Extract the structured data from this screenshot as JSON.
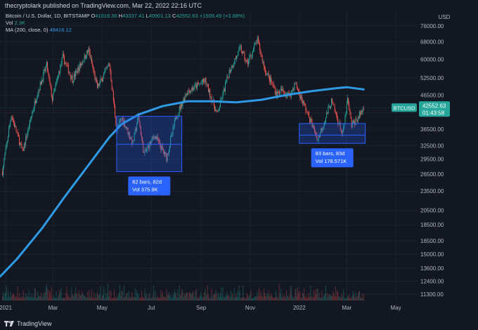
{
  "header": {
    "publish_line": "thecryptolark published on TradingView.com, Mar 22, 2022 22:16 UTC"
  },
  "legend": {
    "symbol_line": "Bitcoin / U.S. Dollar, 1D, BITSTAMP",
    "o_label": "O",
    "o_value": "41018.36",
    "h_label": "H",
    "h_value": "43337.41",
    "l_label": "L",
    "l_value": "40901.13",
    "c_label": "C",
    "c_value": "42552.63",
    "change": "+1509.49 (+3.68%)",
    "vol_label": "Vol",
    "vol_value": "2.3K",
    "ma_label": "MA (200, close, 0)",
    "ma_value": "48416.12"
  },
  "footer": {
    "brand": "TradingView"
  },
  "colors": {
    "background": "#131722",
    "up": "#26a69a",
    "down": "#ef5350",
    "ma": "#2e9ae5",
    "box": "#2962ff",
    "grid": "#1e222d",
    "text": "#b2b5be"
  },
  "chart_data": {
    "type": "candlestick",
    "title": "",
    "y_scale": "log",
    "ylim": [
      10800,
      84000
    ],
    "y_axis_unit": "USD",
    "y_ticks": [
      11300,
      12400,
      13600,
      15000,
      16500,
      18500,
      20500,
      23500,
      26500,
      29500,
      32500,
      36500,
      41000,
      46500,
      52500,
      60000,
      68000,
      76000
    ],
    "x_range": [
      "2020-12-25",
      "2022-05-28"
    ],
    "x_ticks": [
      {
        "date": "2021-01-01",
        "label": "2021"
      },
      {
        "date": "2021-03-01",
        "label": "Mar"
      },
      {
        "date": "2021-05-01",
        "label": "May"
      },
      {
        "date": "2021-07-01",
        "label": "Jul"
      },
      {
        "date": "2021-09-01",
        "label": "Sep"
      },
      {
        "date": "2021-11-01",
        "label": "Nov"
      },
      {
        "date": "2022-01-01",
        "label": "2022"
      },
      {
        "date": "2022-03-01",
        "label": "Mar"
      },
      {
        "date": "2022-05-01",
        "label": "May"
      }
    ],
    "price_path": [
      [
        "2020-12-28",
        27000
      ],
      [
        "2021-01-08",
        40500
      ],
      [
        "2021-01-22",
        31000
      ],
      [
        "2021-02-08",
        46000
      ],
      [
        "2021-02-21",
        57500
      ],
      [
        "2021-02-28",
        45000
      ],
      [
        "2021-03-13",
        61000
      ],
      [
        "2021-03-25",
        52000
      ],
      [
        "2021-04-14",
        64000
      ],
      [
        "2021-04-25",
        49000
      ],
      [
        "2021-05-10",
        58000
      ],
      [
        "2021-05-19",
        36500
      ],
      [
        "2021-05-26",
        39500
      ],
      [
        "2021-06-08",
        33000
      ],
      [
        "2021-06-15",
        40000
      ],
      [
        "2021-06-22",
        30500
      ],
      [
        "2021-07-05",
        35000
      ],
      [
        "2021-07-20",
        29800
      ],
      [
        "2021-08-01",
        40000
      ],
      [
        "2021-08-14",
        47500
      ],
      [
        "2021-09-06",
        51500
      ],
      [
        "2021-09-21",
        40500
      ],
      [
        "2021-10-06",
        55000
      ],
      [
        "2021-10-20",
        65000
      ],
      [
        "2021-10-28",
        58000
      ],
      [
        "2021-11-10",
        68800
      ],
      [
        "2021-11-19",
        56000
      ],
      [
        "2021-12-04",
        47000
      ],
      [
        "2021-12-10",
        48000
      ],
      [
        "2021-12-20",
        46500
      ],
      [
        "2021-12-27",
        50500
      ],
      [
        "2022-01-10",
        41500
      ],
      [
        "2022-01-24",
        34000
      ],
      [
        "2022-02-10",
        44500
      ],
      [
        "2022-02-24",
        35000
      ],
      [
        "2022-03-02",
        45000
      ],
      [
        "2022-03-07",
        37500
      ],
      [
        "2022-03-15",
        39500
      ],
      [
        "2022-03-22",
        42552.63
      ]
    ],
    "moving_average": {
      "name": "MA (200, close, 0)",
      "points": [
        [
          "2020-12-25",
          12800
        ],
        [
          "2021-01-15",
          14500
        ],
        [
          "2021-02-15",
          18000
        ],
        [
          "2021-03-15",
          22500
        ],
        [
          "2021-04-15",
          28500
        ],
        [
          "2021-05-10",
          34500
        ],
        [
          "2021-05-25",
          37800
        ],
        [
          "2021-06-15",
          40500
        ],
        [
          "2021-07-15",
          43000
        ],
        [
          "2021-08-15",
          44500
        ],
        [
          "2021-09-15",
          44500
        ],
        [
          "2021-10-15",
          44200
        ],
        [
          "2021-11-15",
          45000
        ],
        [
          "2021-12-15",
          46500
        ],
        [
          "2022-01-15",
          47800
        ],
        [
          "2022-02-15",
          48800
        ],
        [
          "2022-03-01",
          49200
        ],
        [
          "2022-03-22",
          48416.12
        ]
      ]
    },
    "current_price": {
      "label": "BTCUSD",
      "value": "42552.63",
      "countdown": "01:43:58"
    },
    "range_boxes": [
      {
        "x": [
          "2021-05-19",
          "2021-08-08"
        ],
        "y": [
          27000,
          40000
        ],
        "mid": 32800,
        "info": [
          "82 bars, 82d",
          "Vol 375.9K"
        ]
      },
      {
        "x": [
          "2022-01-01",
          "2022-03-24"
        ],
        "y": [
          33000,
          38000
        ],
        "mid": 35000,
        "info": [
          "83 bars, 83d",
          "Vol 178.571K"
        ]
      }
    ]
  }
}
